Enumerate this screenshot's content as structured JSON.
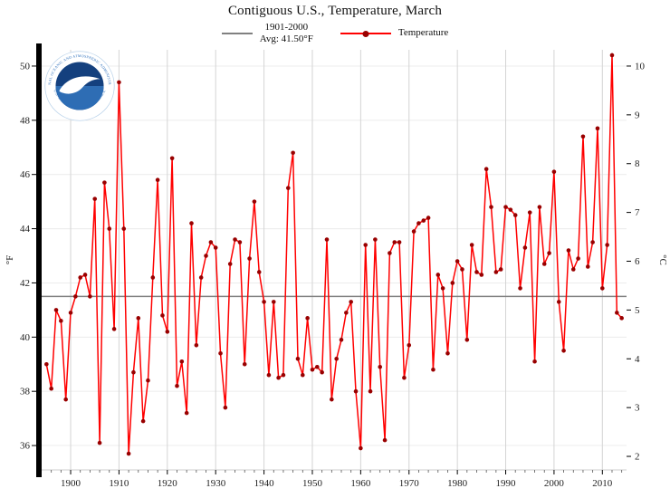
{
  "header": {
    "title": "Contiguous U.S., Temperature, March"
  },
  "legend": {
    "avg_label": "1901-2000\nAvg: 41.50°F",
    "avg_color": "#808080",
    "temp_label": "Temperature",
    "temp_color": "#ff0000",
    "temp_marker_color": "#990000"
  },
  "axes": {
    "left_unit": "°F",
    "right_unit": "°C"
  },
  "logo": {
    "ring_text_top": "NATIONAL OCEANIC AND ATMOSPHERIC ADMINISTRATION",
    "ring_text_bottom": "U.S. DEPARTMENT OF COMMERCE",
    "ring_text_color": "#2a6ebb",
    "sky_color": "#14407e",
    "sea_color": "#2e6db4",
    "bird_color": "#ffffff"
  },
  "chart_data": {
    "type": "line",
    "title": "Contiguous U.S., Temperature, March",
    "series_name": "Temperature",
    "avg_series_name": "1901-2000 Avg: 41.50°F",
    "avg_value": 41.5,
    "xlabel": "",
    "ylabel_left": "°F",
    "ylabel_right": "°C",
    "xlim": [
      1894,
      2015
    ],
    "ylim_f": [
      35.1,
      50.6
    ],
    "yticks_f": [
      36,
      38,
      40,
      42,
      44,
      46,
      48,
      50
    ],
    "yticks_c": [
      2,
      3,
      4,
      5,
      6,
      7,
      8,
      9,
      10
    ],
    "xticks": [
      1900,
      1910,
      1920,
      1930,
      1940,
      1950,
      1960,
      1970,
      1980,
      1990,
      2000,
      2010
    ],
    "grid": true,
    "legend_position": "top",
    "colors": {
      "line": "#ff0000",
      "marker": "#990000",
      "avg": "#808080",
      "grid_v": "#d4d4d4",
      "grid_h": "#ececec",
      "axis_bar": "#000000",
      "tick": "#000000",
      "label": "#222222"
    },
    "years": [
      1895,
      1896,
      1897,
      1898,
      1899,
      1900,
      1901,
      1902,
      1903,
      1904,
      1905,
      1906,
      1907,
      1908,
      1909,
      1910,
      1911,
      1912,
      1913,
      1914,
      1915,
      1916,
      1917,
      1918,
      1919,
      1920,
      1921,
      1922,
      1923,
      1924,
      1925,
      1926,
      1927,
      1928,
      1929,
      1930,
      1931,
      1932,
      1933,
      1934,
      1935,
      1936,
      1937,
      1938,
      1939,
      1940,
      1941,
      1942,
      1943,
      1944,
      1945,
      1946,
      1947,
      1948,
      1949,
      1950,
      1951,
      1952,
      1953,
      1954,
      1955,
      1956,
      1957,
      1958,
      1959,
      1960,
      1961,
      1962,
      1963,
      1964,
      1965,
      1966,
      1967,
      1968,
      1969,
      1970,
      1971,
      1972,
      1973,
      1974,
      1975,
      1976,
      1977,
      1978,
      1979,
      1980,
      1981,
      1982,
      1983,
      1984,
      1985,
      1986,
      1987,
      1988,
      1989,
      1990,
      1991,
      1992,
      1993,
      1994,
      1995,
      1996,
      1997,
      1998,
      1999,
      2000,
      2001,
      2002,
      2003,
      2004,
      2005,
      2006,
      2007,
      2008,
      2009,
      2010,
      2011,
      2012,
      2013,
      2014
    ],
    "values": [
      39.0,
      38.1,
      41.0,
      40.6,
      37.7,
      40.9,
      41.5,
      42.2,
      42.3,
      41.5,
      45.1,
      36.1,
      45.7,
      44.0,
      40.3,
      49.4,
      44.0,
      35.7,
      38.7,
      40.7,
      36.9,
      38.4,
      42.2,
      45.8,
      40.8,
      40.2,
      46.6,
      38.2,
      39.1,
      37.2,
      44.2,
      39.7,
      42.2,
      43.0,
      43.5,
      43.3,
      39.4,
      37.4,
      42.7,
      43.6,
      43.5,
      39.0,
      42.9,
      45.0,
      42.4,
      41.3,
      38.6,
      41.3,
      38.5,
      38.6,
      45.5,
      46.8,
      39.2,
      38.6,
      40.7,
      38.8,
      38.9,
      38.7,
      43.6,
      37.7,
      39.2,
      39.9,
      40.9,
      41.3,
      38.0,
      35.9,
      43.4,
      38.0,
      43.6,
      38.9,
      36.2,
      43.1,
      43.5,
      43.5,
      38.5,
      39.7,
      43.9,
      44.2,
      44.3,
      44.4,
      38.8,
      42.3,
      41.8,
      39.4,
      42.0,
      42.8,
      42.5,
      39.9,
      43.4,
      42.4,
      42.3,
      46.2,
      44.8,
      42.4,
      42.5,
      44.8,
      44.7,
      44.5,
      41.8,
      43.3,
      44.6,
      39.1,
      44.8,
      42.7,
      43.1,
      46.1,
      41.3,
      39.5,
      43.2,
      42.5,
      42.9,
      47.4,
      42.6,
      43.5,
      47.7,
      41.8,
      43.4,
      50.4,
      40.9,
      40.7
    ]
  }
}
